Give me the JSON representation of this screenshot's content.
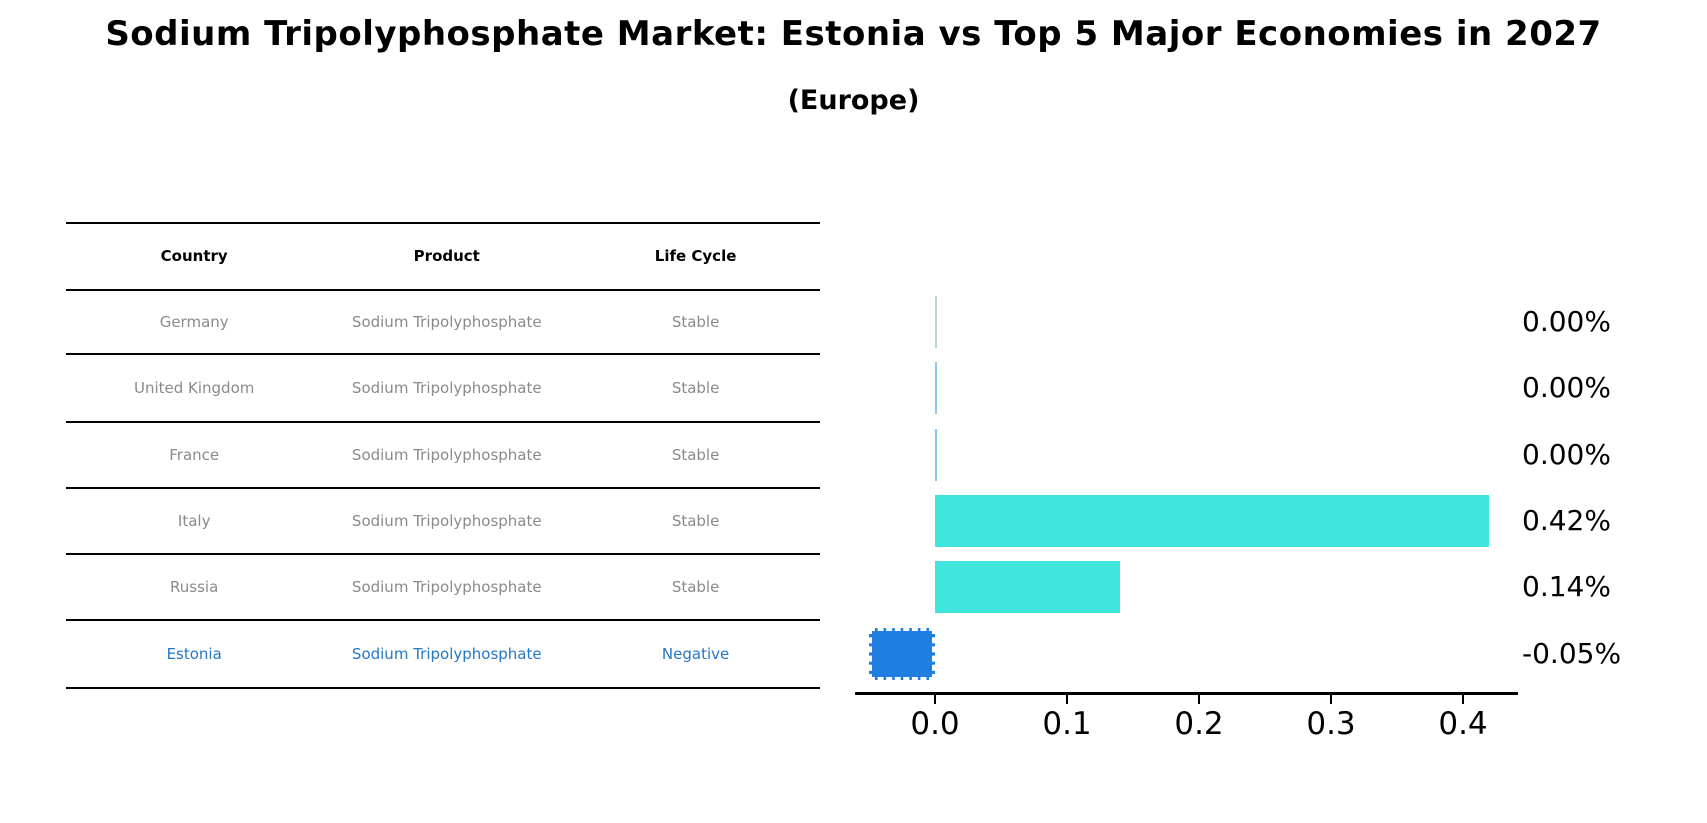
{
  "header": {
    "title": "Sodium Tripolyphosphate Market: Estonia vs Top 5 Major Economies in 2027",
    "subtitle": "(Europe)"
  },
  "table": {
    "headers": [
      "Country",
      "Product",
      "Life Cycle"
    ],
    "rows": [
      {
        "country": "Germany",
        "product": "Sodium Tripolyphosphate",
        "life_cycle": "Stable",
        "highlighted": false
      },
      {
        "country": "United Kingdom",
        "product": "Sodium Tripolyphosphate",
        "life_cycle": "Stable",
        "highlighted": false
      },
      {
        "country": "France",
        "product": "Sodium Tripolyphosphate",
        "life_cycle": "Stable",
        "highlighted": false
      },
      {
        "country": "Italy",
        "product": "Sodium Tripolyphosphate",
        "life_cycle": "Stable",
        "highlighted": false
      },
      {
        "country": "Russia",
        "product": "Sodium Tripolyphosphate",
        "life_cycle": "Stable",
        "highlighted": false
      },
      {
        "country": "Estonia",
        "product": "Sodium Tripolyphosphate",
        "life_cycle": "Negative",
        "highlighted": true
      }
    ]
  },
  "chart_data": {
    "type": "bar",
    "orientation": "horizontal",
    "title": "Sodium Tripolyphosphate Market: Estonia vs Top 5 Major Economies in 2027 (Europe)",
    "categories": [
      "Germany",
      "United Kingdom",
      "France",
      "Italy",
      "Russia",
      "Estonia"
    ],
    "values": [
      0.0,
      0.0,
      0.0,
      0.42,
      0.14,
      -0.05
    ],
    "value_labels": [
      "0.00%",
      "0.00%",
      "0.00%",
      "0.42%",
      "0.14%",
      "-0.05%"
    ],
    "x_ticks": [
      "0.0",
      "0.1",
      "0.2",
      "0.3",
      "0.4"
    ],
    "x_tick_values": [
      0.0,
      0.1,
      0.2,
      0.3,
      0.4
    ],
    "xlim": [
      -0.061,
      0.441
    ],
    "grid": false,
    "legend": "none",
    "bar_colors": [
      "#b2dcc9",
      "#8ac6ea",
      "#8ac6ea",
      "#40e5de",
      "#40e5de",
      "#1f7fe0"
    ],
    "highlight_index": 5,
    "highlight_edge_style": "dashed-white"
  },
  "colors": {
    "teal_bar": "#40e5de",
    "highlight_bar_blue": "#1f7fe0",
    "highlight_text_blue": "#2577c8",
    "row_text_gray": "#8a8a8a",
    "axis_black": "#000000"
  }
}
